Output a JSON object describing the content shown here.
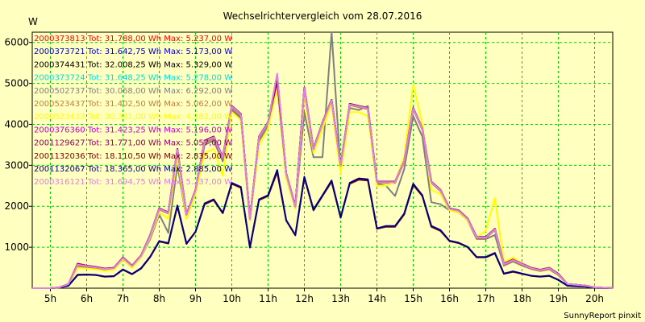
{
  "chart_data": {
    "type": "line",
    "title": "Wechselrichtervergleich vom 28.07.2016",
    "ylabel": "W",
    "footer": "SunnyReport pinxit",
    "xlim": [
      4.5,
      20.5
    ],
    "ylim": [
      0,
      6250
    ],
    "x_ticks": [
      5,
      6,
      7,
      8,
      9,
      10,
      11,
      12,
      13,
      14,
      15,
      16,
      17,
      18,
      19,
      20
    ],
    "x_tick_labels": [
      "5h",
      "6h",
      "7h",
      "8h",
      "9h",
      "10h",
      "11h",
      "12h",
      "13h",
      "14h",
      "15h",
      "16h",
      "17h",
      "18h",
      "19h",
      "20h"
    ],
    "y_ticks": [
      1000,
      2000,
      3000,
      4000,
      5000,
      6000
    ],
    "y_tick_labels": [
      "1000",
      "2000",
      "3000",
      "4000",
      "5000",
      "6000"
    ],
    "grid": true,
    "legend_position": "top-left",
    "x": [
      4.5,
      5.0,
      5.25,
      5.5,
      5.75,
      6.0,
      6.25,
      6.5,
      6.75,
      7.0,
      7.25,
      7.5,
      7.75,
      8.0,
      8.25,
      8.5,
      8.75,
      9.0,
      9.25,
      9.5,
      9.75,
      10.0,
      10.25,
      10.5,
      10.75,
      11.0,
      11.25,
      11.5,
      11.75,
      12.0,
      12.25,
      12.5,
      12.75,
      13.0,
      13.25,
      13.5,
      13.75,
      14.0,
      14.25,
      14.5,
      14.75,
      15.0,
      15.25,
      15.5,
      15.75,
      16.0,
      16.25,
      16.5,
      16.75,
      17.0,
      17.25,
      17.5,
      17.75,
      18.0,
      18.25,
      18.5,
      18.75,
      19.0,
      19.25,
      19.5,
      19.75,
      20.0,
      20.5
    ],
    "series": [
      {
        "name": "2000373813 Tot: 31.788,00 Wh Max: 5.237,00 W",
        "color": "#ff0000",
        "values": [
          0,
          0,
          20,
          100,
          600,
          550,
          520,
          480,
          500,
          750,
          550,
          800,
          1300,
          1950,
          1850,
          3400,
          1800,
          2400,
          3600,
          3700,
          3200,
          4450,
          4250,
          1700,
          3700,
          4050,
          5100,
          2800,
          2000,
          4900,
          3400,
          4050,
          4600,
          3000,
          4500,
          4450,
          4400,
          2600,
          2600,
          2600,
          3100,
          4400,
          3900,
          2600,
          2400,
          1950,
          1900,
          1700,
          1250,
          1250,
          1450,
          600,
          700,
          600,
          500,
          450,
          500,
          350,
          100,
          80,
          60,
          20,
          0
        ]
      },
      {
        "name": "2000373721 Tot: 31.642,75 Wh Max: 5.173,00 W",
        "color": "#0000cc",
        "values": [
          0,
          0,
          20,
          100,
          580,
          540,
          510,
          470,
          490,
          740,
          540,
          790,
          1290,
          1940,
          1840,
          3380,
          1790,
          2390,
          3580,
          3680,
          3190,
          4430,
          4230,
          1690,
          3690,
          4040,
          5080,
          2790,
          1990,
          4880,
          3390,
          4040,
          4580,
          2990,
          4490,
          4440,
          4390,
          2590,
          2590,
          2590,
          3090,
          4390,
          3890,
          2590,
          2390,
          1940,
          1890,
          1690,
          1240,
          1240,
          1440,
          590,
          690,
          590,
          490,
          440,
          490,
          340,
          100,
          80,
          60,
          20,
          0
        ]
      },
      {
        "name": "2000374431 Tot: 32.008,25 Wh Max: 5.329,00 W",
        "color": "#000000",
        "values": [
          0,
          0,
          20,
          100,
          590,
          545,
          515,
          475,
          495,
          745,
          545,
          795,
          1300,
          1950,
          1850,
          3400,
          1800,
          2400,
          3600,
          3700,
          3200,
          4450,
          4250,
          1700,
          3700,
          4050,
          5200,
          2800,
          2000,
          4900,
          3400,
          4050,
          4600,
          3000,
          4500,
          4450,
          4400,
          2600,
          2600,
          2600,
          3100,
          4400,
          3900,
          2600,
          2400,
          1950,
          1900,
          1700,
          1250,
          1250,
          1450,
          600,
          700,
          600,
          500,
          450,
          500,
          350,
          100,
          80,
          60,
          20,
          0
        ]
      },
      {
        "name": "2000373724 Tot: 31.648,25 Wh Max: 5.278,00 W",
        "color": "#00e0e0",
        "values": [
          0,
          0,
          20,
          100,
          570,
          535,
          505,
          465,
          485,
          735,
          535,
          785,
          1280,
          1930,
          1830,
          3370,
          1780,
          2380,
          3570,
          3670,
          3180,
          4420,
          4220,
          1680,
          3680,
          4030,
          5150,
          2780,
          1980,
          4870,
          3380,
          4030,
          4570,
          2980,
          4480,
          4430,
          4380,
          2580,
          2580,
          2580,
          3080,
          4380,
          3880,
          2580,
          2380,
          1930,
          1880,
          1680,
          1230,
          1230,
          1430,
          580,
          680,
          580,
          480,
          430,
          480,
          330,
          100,
          80,
          60,
          20,
          0
        ]
      },
      {
        "name": "2000502737 Tot: 30.068,00 Wh Max: 6.292,00 W",
        "color": "#808080",
        "values": [
          0,
          0,
          20,
          90,
          520,
          500,
          480,
          440,
          460,
          700,
          500,
          760,
          1200,
          1800,
          1350,
          3000,
          1700,
          2300,
          3500,
          3600,
          3100,
          4350,
          4150,
          1650,
          3600,
          3950,
          4900,
          2700,
          1950,
          4300,
          3200,
          3200,
          6292,
          2900,
          4400,
          4350,
          4450,
          2550,
          2500,
          2250,
          2900,
          4200,
          3700,
          2100,
          2050,
          1900,
          1850,
          1650,
          1200,
          1200,
          1300,
          550,
          650,
          550,
          470,
          420,
          460,
          320,
          90,
          70,
          50,
          15,
          0
        ]
      },
      {
        "name": "2000523437 Tot: 31.402,50 Wh Max: 5.062,00 W",
        "color": "#c08040",
        "values": [
          0,
          0,
          20,
          95,
          560,
          530,
          500,
          460,
          480,
          730,
          530,
          780,
          1270,
          1920,
          1820,
          3350,
          1770,
          2370,
          3550,
          3650,
          3170,
          4400,
          4200,
          1670,
          3670,
          4020,
          5000,
          2770,
          1970,
          4850,
          3370,
          4020,
          4550,
          2970,
          4470,
          4420,
          4370,
          2570,
          2570,
          2570,
          3070,
          4370,
          3870,
          2570,
          2370,
          1920,
          1870,
          1670,
          1220,
          1220,
          1420,
          570,
          670,
          570,
          470,
          420,
          470,
          320,
          95,
          75,
          55,
          18,
          0
        ]
      },
      {
        "name": "2000523433 Tot: 30.331,00 Wh Max: 4.981,00 W",
        "color": "#ffff00",
        "values": [
          0,
          0,
          20,
          90,
          500,
          480,
          460,
          420,
          450,
          700,
          500,
          760,
          1250,
          1850,
          1700,
          3200,
          1700,
          2300,
          3300,
          3400,
          2750,
          4300,
          4100,
          1650,
          3500,
          3900,
          4900,
          2700,
          1950,
          4700,
          3300,
          3900,
          4500,
          2800,
          4300,
          4300,
          4200,
          2500,
          2500,
          2600,
          3200,
          4981,
          4000,
          2400,
          2300,
          1900,
          1850,
          1650,
          1250,
          1400,
          2200,
          650,
          750,
          600,
          500,
          450,
          500,
          340,
          90,
          70,
          50,
          15,
          0
        ]
      },
      {
        "name": "2000376360 Tot: 31.423,25 Wh Max: 5.196,00 W",
        "color": "#cc00cc",
        "values": [
          0,
          0,
          20,
          100,
          585,
          545,
          515,
          475,
          495,
          745,
          545,
          795,
          1290,
          1945,
          1845,
          3390,
          1795,
          2395,
          3590,
          3690,
          3195,
          4440,
          4240,
          1695,
          3695,
          4045,
          5180,
          2795,
          1995,
          4895,
          3395,
          4045,
          4595,
          2995,
          4495,
          4445,
          4395,
          2595,
          2595,
          2595,
          3095,
          4395,
          3895,
          2595,
          2395,
          1945,
          1895,
          1695,
          1245,
          1245,
          1445,
          595,
          695,
          595,
          495,
          445,
          495,
          345,
          100,
          80,
          60,
          20,
          0
        ]
      },
      {
        "name": "2001129627 Tot: 31.771,00 Wh Max: 5.057,00 W",
        "color": "#990066",
        "values": [
          0,
          0,
          20,
          100,
          595,
          548,
          518,
          478,
          498,
          748,
          548,
          798,
          1295,
          1948,
          1848,
          3395,
          1798,
          2398,
          3595,
          3695,
          3198,
          4445,
          4245,
          1698,
          3698,
          4048,
          5050,
          2798,
          1998,
          4898,
          3398,
          4048,
          4598,
          2998,
          4498,
          4448,
          4398,
          2598,
          2598,
          2598,
          3098,
          4398,
          3898,
          2598,
          2398,
          1948,
          1898,
          1698,
          1248,
          1248,
          1448,
          598,
          698,
          598,
          498,
          448,
          498,
          348,
          100,
          80,
          60,
          20,
          0
        ]
      },
      {
        "name": "2001132036 Tot: 18.110,50 Wh Max: 2.835,00 W",
        "color": "#800000",
        "values": [
          0,
          0,
          15,
          60,
          320,
          330,
          320,
          280,
          290,
          450,
          340,
          480,
          760,
          1140,
          1090,
          2000,
          1080,
          1370,
          2050,
          2150,
          1830,
          2550,
          2450,
          990,
          2150,
          2250,
          2835,
          1650,
          1290,
          2700,
          1900,
          2250,
          2600,
          1720,
          2550,
          2650,
          2630,
          1450,
          1500,
          1500,
          1800,
          2520,
          2250,
          1500,
          1400,
          1150,
          1100,
          1000,
          750,
          750,
          850,
          350,
          400,
          350,
          300,
          280,
          300,
          200,
          60,
          50,
          40,
          10,
          0
        ]
      },
      {
        "name": "2001132067 Tot: 18.365,00 Wh Max: 2.885,00 W",
        "color": "#000080",
        "values": [
          0,
          0,
          15,
          60,
          330,
          335,
          325,
          285,
          295,
          460,
          345,
          490,
          770,
          1150,
          1100,
          2020,
          1090,
          1380,
          2070,
          2170,
          1840,
          2570,
          2470,
          1000,
          2170,
          2270,
          2885,
          1660,
          1300,
          2720,
          1920,
          2270,
          2630,
          1730,
          2570,
          2680,
          2660,
          1460,
          1520,
          1520,
          1820,
          2550,
          2270,
          1520,
          1420,
          1160,
          1110,
          1010,
          760,
          760,
          860,
          355,
          410,
          355,
          305,
          285,
          305,
          205,
          60,
          50,
          40,
          10,
          0
        ]
      },
      {
        "name": "2000316121 Tot: 31.694,75 Wh Max: 5.237,00 W",
        "color": "#e080e0",
        "values": [
          0,
          0,
          20,
          100,
          575,
          538,
          508,
          468,
          488,
          738,
          538,
          788,
          1285,
          1938,
          1838,
          3385,
          1788,
          2388,
          3585,
          3685,
          3188,
          4435,
          4235,
          1688,
          3688,
          4038,
          5237,
          2788,
          1988,
          4888,
          3388,
          4038,
          4588,
          2988,
          4488,
          4438,
          4388,
          2588,
          2588,
          2588,
          3088,
          4388,
          3888,
          2588,
          2388,
          1938,
          1888,
          1688,
          1238,
          1238,
          1438,
          588,
          688,
          588,
          488,
          438,
          488,
          338,
          100,
          80,
          60,
          20,
          0
        ]
      }
    ]
  }
}
